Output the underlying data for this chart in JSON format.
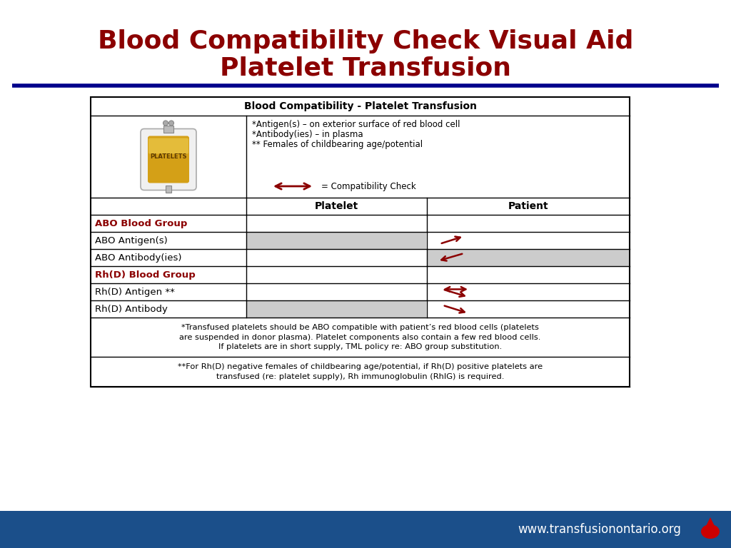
{
  "title_line1": "Blood Compatibility Check Visual Aid",
  "title_line2": "Platelet Transfusion",
  "title_color": "#8B0000",
  "title_fontsize": 26,
  "separator_color": "#00008B",
  "table_title": "Blood Compatibility - Platelet Transfusion",
  "col_headers": [
    "Platelet",
    "Patient"
  ],
  "row_labels": [
    "ABO Blood Group",
    "ABO Antigen(s)",
    "ABO Antibody(ies)",
    "Rh(D) Blood Group",
    "Rh(D) Antigen **",
    "Rh(D) Antibody"
  ],
  "group_color": "#8B0000",
  "gray_color": "#CCCCCC",
  "legend_lines": [
    "*Antigen(s) – on exterior surface of red blood cell",
    "*Antibody(ies) – in plasma",
    "** Females of childbearing age/potential"
  ],
  "compatibility_label": "= Compatibility Check",
  "footnote1": "*Transfused platelets should be ABO compatible with patient’s red blood cells (platelets\nare suspended in donor plasma). Platelet components also contain a few red blood cells.\nIf platelets are in short supply, TML policy re: ABO group substitution.",
  "footnote2": "**For Rh(D) negative females of childbearing age/potential, if Rh(D) positive platelets are\ntransfused (re: platelet supply), Rh immunoglobulin (RhIG) is required.",
  "footer_bg": "#1B4F8A",
  "footer_text": "www.transfusionontario.org",
  "footer_text_color": "#FFFFFF",
  "bg_color": "#FFFFFF",
  "arrow_color": "#8B0000"
}
